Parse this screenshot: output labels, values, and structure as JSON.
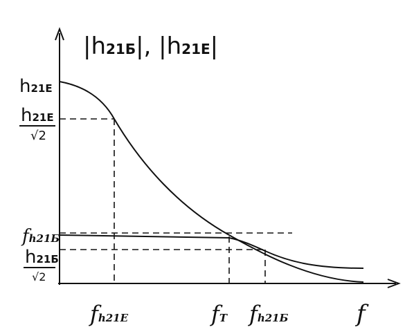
{
  "title": {
    "parts": [
      "|h",
      "21Б",
      "|, |h",
      "21Е",
      "|"
    ]
  },
  "y_labels": [
    {
      "base": "h",
      "sub": "21Е"
    },
    {
      "base": "h",
      "sub": "21Е",
      "denominator": "√2"
    },
    {
      "base": "f",
      "sub": "h21Б"
    },
    {
      "base": "h",
      "sub": "21Б",
      "denominator": "√2"
    }
  ],
  "x_labels": [
    {
      "base": "f",
      "sub": "h21Е"
    },
    {
      "base": "f",
      "sub": "T"
    },
    {
      "base": "f",
      "sub": "h21Б"
    },
    {
      "base": "f"
    }
  ]
}
